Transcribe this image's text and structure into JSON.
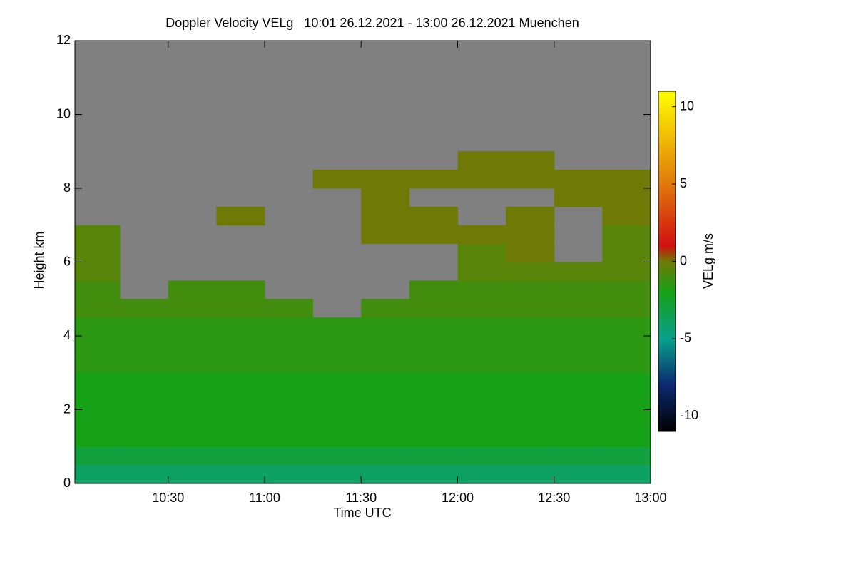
{
  "chart_data": {
    "type": "heatmap",
    "title": "Doppler Velocity VELg   10:01 26.12.2021 - 13:00 26.12.2021 Muenchen",
    "xlabel": "Time UTC",
    "ylabel": "Height km",
    "xlim": [
      601,
      780
    ],
    "ylim": [
      0,
      12
    ],
    "xticks": [
      {
        "value": 630,
        "label": "10:30"
      },
      {
        "value": 660,
        "label": "11:00"
      },
      {
        "value": 690,
        "label": "11:30"
      },
      {
        "value": 720,
        "label": "12:00"
      },
      {
        "value": 750,
        "label": "12:30"
      },
      {
        "value": 780,
        "label": "13:00"
      }
    ],
    "yticks": [
      0,
      2,
      4,
      6,
      8,
      10,
      12
    ],
    "x_bins": [
      601,
      615,
      630,
      645,
      660,
      675,
      690,
      705,
      720,
      735,
      750,
      765,
      780
    ],
    "y_bins": [
      0,
      0.5,
      1,
      1.5,
      2,
      2.5,
      3,
      3.5,
      4,
      4.5,
      5,
      5.5,
      6,
      6.5,
      7,
      7.5,
      8,
      8.5,
      9,
      9.5,
      10,
      10.5,
      11,
      11.5,
      12
    ],
    "values": [
      [
        -4,
        -4,
        -4,
        -4,
        -4,
        -4,
        -4,
        -4,
        -4,
        -4,
        -4,
        -4
      ],
      [
        -3,
        -3,
        -3,
        -3,
        -3,
        -3,
        -3,
        -3,
        -3,
        -3,
        -3,
        -3
      ],
      [
        -2,
        -2,
        -2,
        -2,
        -2,
        -2,
        -2,
        -2,
        -2,
        -2,
        -2,
        -2
      ],
      [
        -2,
        -2,
        -2,
        -2,
        -2,
        -2,
        -2,
        -2,
        -2,
        -2,
        -2,
        -2
      ],
      [
        -2,
        -2,
        -2,
        -2,
        -2,
        -2,
        -2,
        -2,
        -2,
        -2,
        -2,
        -2
      ],
      [
        -2,
        -2,
        -2,
        -2,
        -2,
        -2,
        -2,
        -2,
        -2,
        -2,
        -2,
        -2
      ],
      [
        -1.5,
        -1.5,
        -1.5,
        -1.5,
        -1.5,
        -1.5,
        -1.5,
        -1.5,
        -1.5,
        -1.5,
        -1.5,
        -1.5
      ],
      [
        -1.5,
        -1.5,
        -1.5,
        -1.5,
        -1.5,
        -1.5,
        -1.5,
        -1.5,
        -1.5,
        -1.5,
        -1.5,
        -1.5
      ],
      [
        -1.5,
        -1.5,
        -1.5,
        -1.5,
        -1.5,
        -1.5,
        -1.5,
        -1.5,
        -1.5,
        -1.5,
        -1.5,
        -1.5
      ],
      [
        -1,
        -1,
        -1,
        -1,
        -1,
        null,
        -1,
        -1,
        -1,
        -1,
        -1,
        -1
      ],
      [
        -1,
        null,
        -1,
        -1,
        null,
        null,
        null,
        -1,
        -1,
        -1,
        -1,
        -1
      ],
      [
        -0.5,
        null,
        null,
        null,
        null,
        null,
        null,
        null,
        -0.5,
        -0.5,
        -0.5,
        -0.5
      ],
      [
        -0.5,
        null,
        null,
        null,
        null,
        null,
        null,
        null,
        -0.5,
        0,
        null,
        -0.5
      ],
      [
        -0.5,
        null,
        null,
        null,
        null,
        null,
        0,
        0,
        0,
        0,
        null,
        -0.5
      ],
      [
        null,
        null,
        null,
        0,
        null,
        null,
        0,
        0,
        null,
        0,
        null,
        0
      ],
      [
        null,
        null,
        null,
        null,
        null,
        null,
        0,
        null,
        null,
        null,
        0,
        0
      ],
      [
        null,
        null,
        null,
        null,
        null,
        0,
        0,
        0,
        0,
        0,
        0,
        0
      ],
      [
        null,
        null,
        null,
        null,
        null,
        null,
        null,
        null,
        0,
        0,
        null,
        null
      ],
      [
        null,
        null,
        null,
        null,
        null,
        null,
        null,
        null,
        null,
        null,
        null,
        null
      ],
      [
        null,
        null,
        null,
        null,
        null,
        null,
        null,
        null,
        null,
        null,
        null,
        null
      ],
      [
        null,
        null,
        null,
        null,
        null,
        null,
        null,
        null,
        null,
        null,
        null,
        null
      ],
      [
        null,
        null,
        null,
        null,
        null,
        null,
        null,
        null,
        null,
        null,
        null,
        null
      ],
      [
        null,
        null,
        null,
        null,
        null,
        null,
        null,
        null,
        null,
        null,
        null,
        null
      ],
      [
        null,
        null,
        null,
        null,
        null,
        null,
        null,
        null,
        null,
        null,
        null,
        null
      ]
    ],
    "missing_color": "#808080",
    "colorscale": [
      {
        "value": -11,
        "color": "#000000"
      },
      {
        "value": -8,
        "color": "#0b2a70"
      },
      {
        "value": -5,
        "color": "#08a08a"
      },
      {
        "value": -2,
        "color": "#16a016"
      },
      {
        "value": 0,
        "color": "#6e7a05"
      },
      {
        "value": 1,
        "color": "#d01010"
      },
      {
        "value": 5,
        "color": "#e0780a"
      },
      {
        "value": 11,
        "color": "#ffff00"
      }
    ],
    "colorbar_label": "VELg m/s",
    "colorbar_lim": [
      -11,
      11
    ],
    "colorbar_ticks": [
      10,
      5,
      0,
      -5,
      -10
    ]
  }
}
